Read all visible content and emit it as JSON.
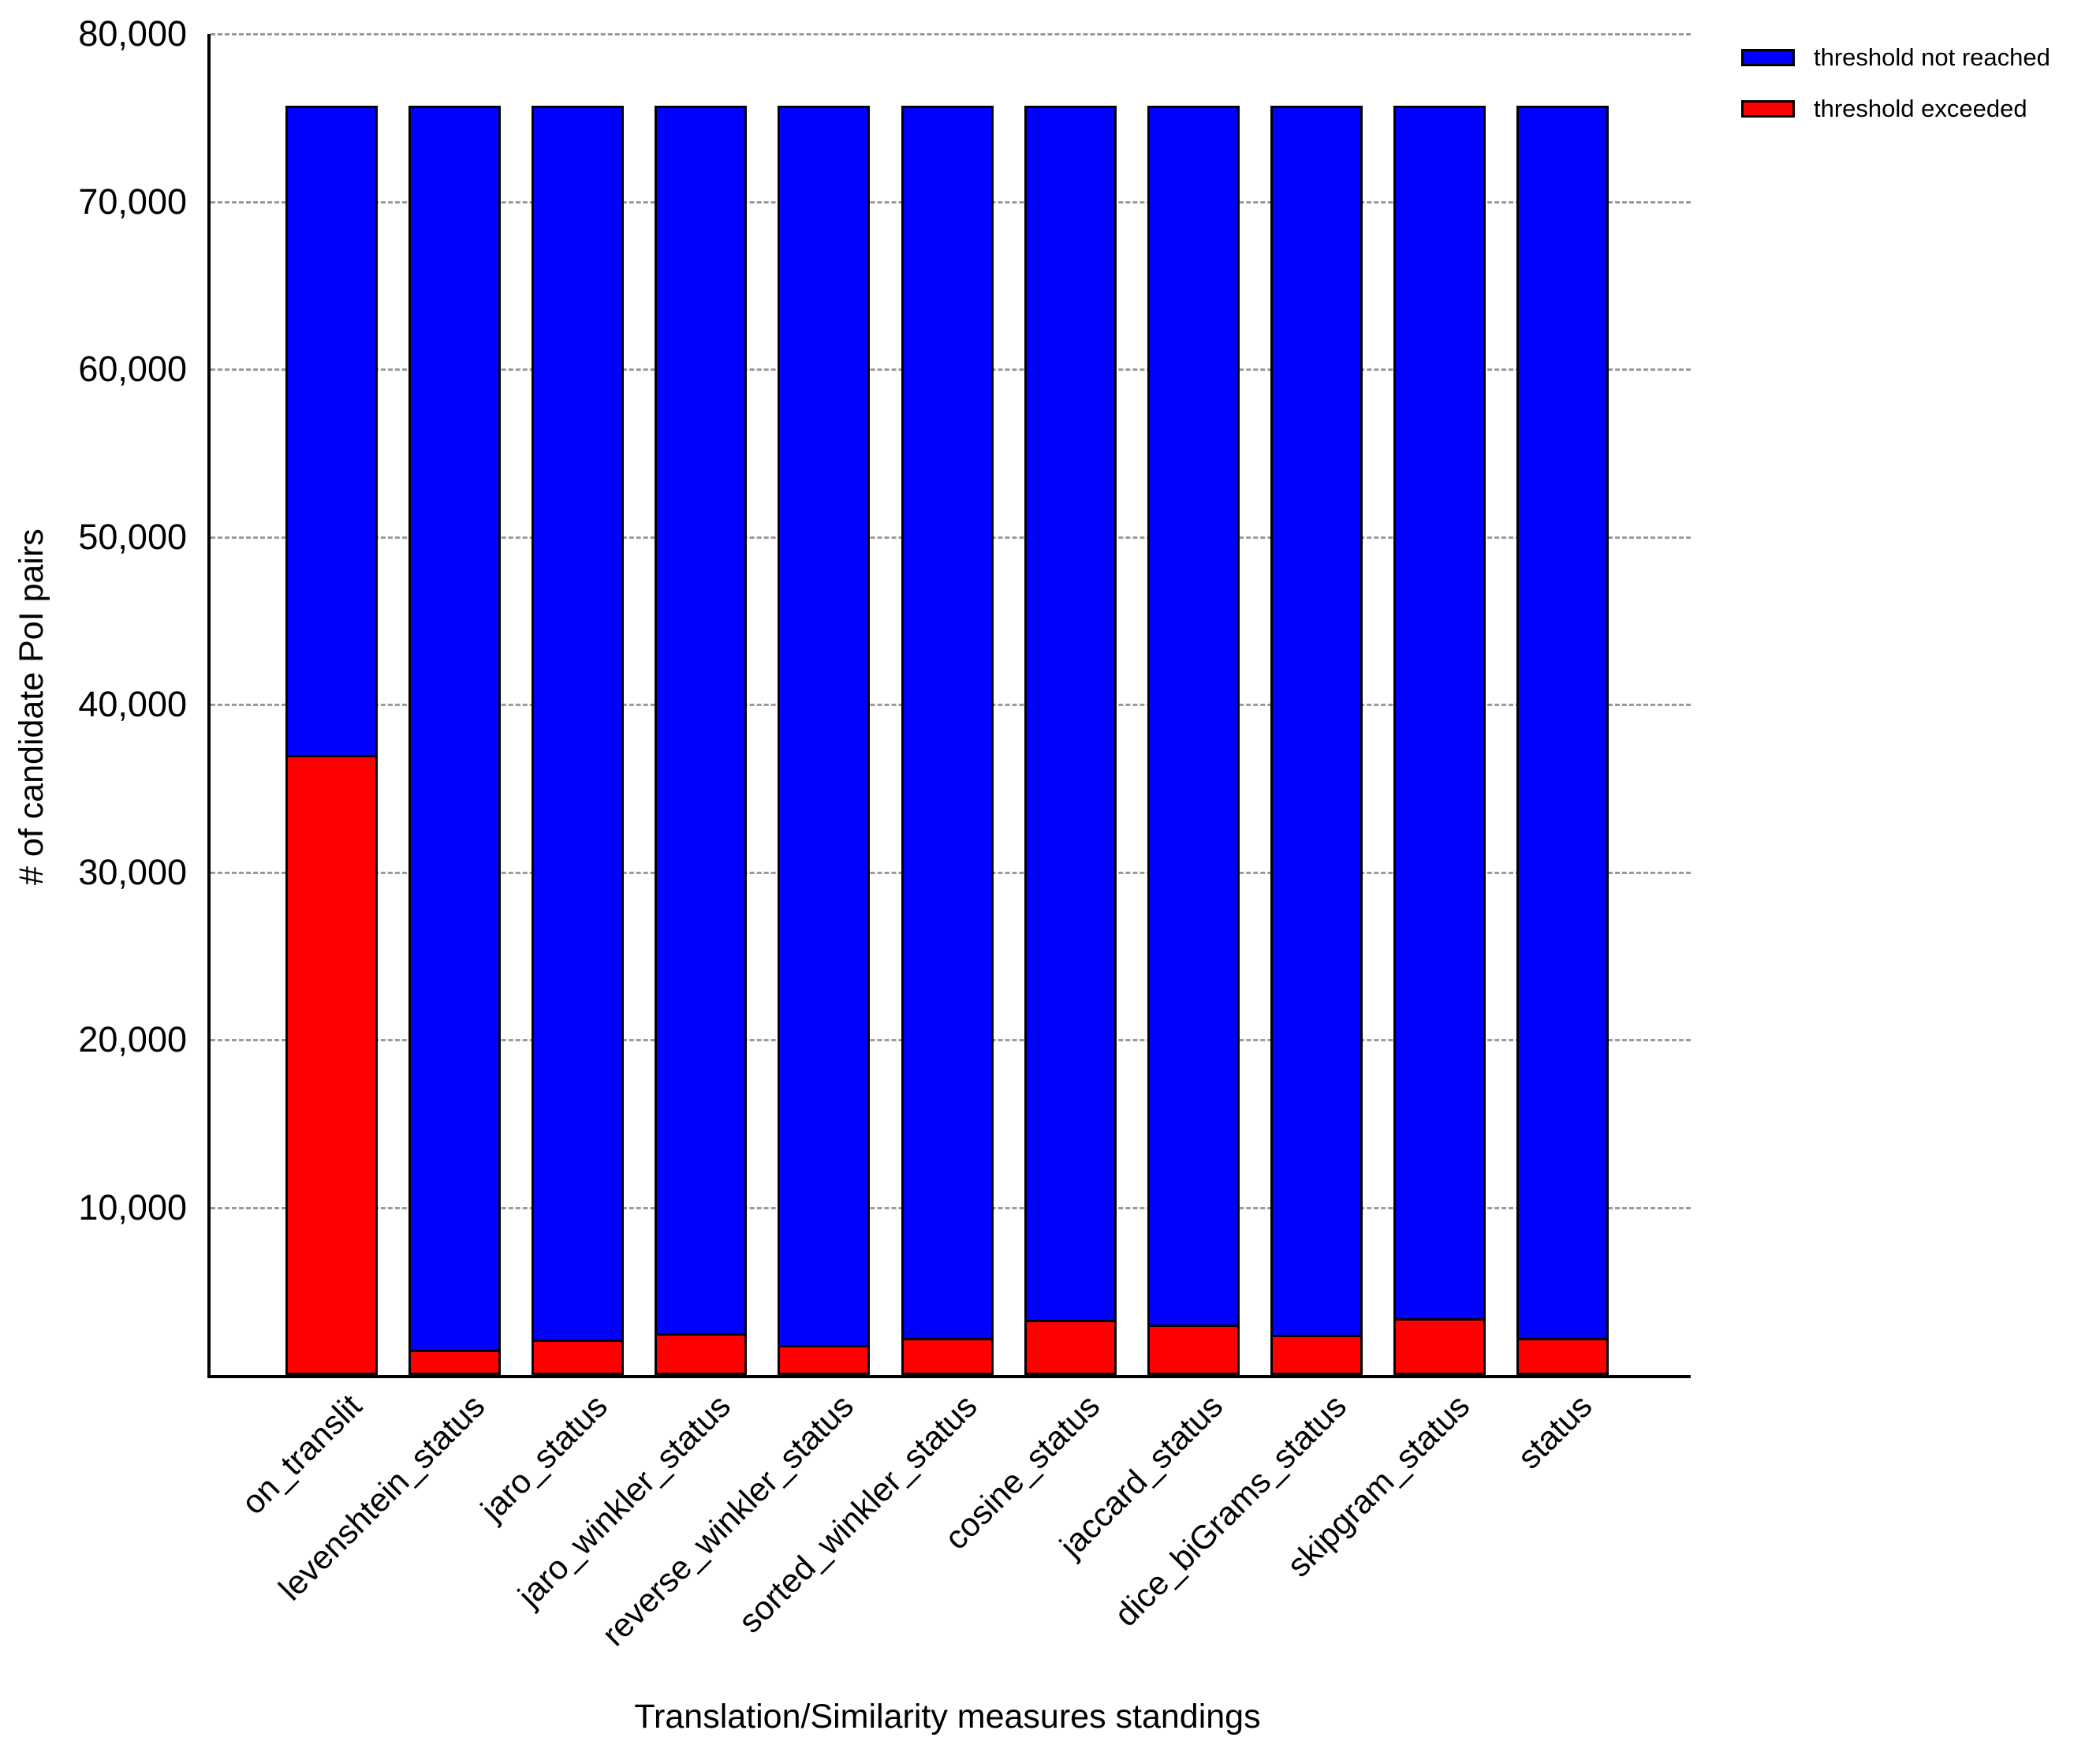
{
  "chart_data": {
    "type": "bar",
    "stacked": true,
    "orientation": "vertical",
    "xlabel": "Translation/Similarity measures standings",
    "ylabel": "# of candidate PoI pairs",
    "ylim": [
      0,
      80000
    ],
    "ytick_step": 10000,
    "ytick_labels": [
      "10,000",
      "20,000",
      "30,000",
      "40,000",
      "50,000",
      "60,000",
      "70,000",
      "80,000"
    ],
    "grid": "horizontal-dashed",
    "bar_total": 75700,
    "categories": [
      "on_translit",
      "levenshtein_status",
      "jaro_status",
      "jaro_winkler_status",
      "reverse_winkler_status",
      "sorted_winkler_status",
      "cosine_status",
      "jaccard_status",
      "dice_biGrams_status",
      "skipgram_status",
      "status"
    ],
    "series": [
      {
        "name": "threshold exceeded",
        "color": "#ff0000",
        "values": [
          37000,
          1500,
          2100,
          2500,
          1800,
          2200,
          3300,
          3000,
          2400,
          3400,
          2200
        ]
      },
      {
        "name": "threshold not reached",
        "color": "#0000ff",
        "values": [
          38700,
          74200,
          73600,
          73200,
          73900,
          73500,
          72400,
          72700,
          73300,
          72300,
          73500
        ]
      }
    ],
    "legend": {
      "position": "top-right",
      "items": [
        {
          "label": "threshold not reached",
          "color": "#0000ff"
        },
        {
          "label": "threshold exceeded",
          "color": "#ff0000"
        }
      ]
    }
  },
  "colors": {
    "bar_blue": "#0000ff",
    "bar_red": "#ff0000",
    "axis": "#000000",
    "gridline": "#9b9b9b",
    "background": "#ffffff"
  }
}
